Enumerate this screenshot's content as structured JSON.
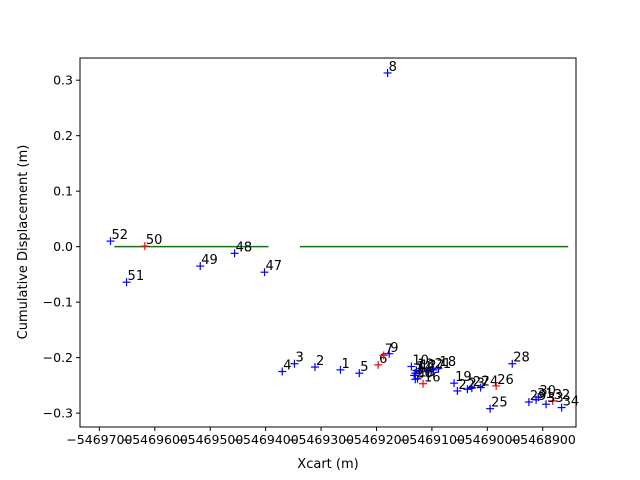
{
  "chart_data": {
    "type": "scatter",
    "title": "",
    "xlabel": "Xcart (m)",
    "ylabel": "Cumulative Displacement (m)",
    "xlim": [
      -5469735,
      -5468840
    ],
    "ylim": [
      -0.325,
      0.34
    ],
    "xticks": [
      -5469700,
      -5469600,
      -5469500,
      -5469400,
      -5469300,
      -5469200,
      -5469100,
      -5469000,
      -5468900
    ],
    "xtick_labels": [
      "−5469700",
      "−5469600",
      "−5469500",
      "−5469400",
      "−5469300",
      "−5469200",
      "−5469100",
      "−5469000",
      "−5468900"
    ],
    "yticks": [
      -0.3,
      -0.2,
      -0.1,
      0.0,
      0.1,
      0.2,
      0.3
    ],
    "ytick_labels": [
      "−0.3",
      "−0.2",
      "−0.1",
      "0.0",
      "0.1",
      "0.2",
      "0.3"
    ],
    "grid": false,
    "colors": {
      "blue": "#0000ff",
      "red": "#ff0000",
      "green": "#008000",
      "axis": "#000000"
    },
    "reference_lines": [
      {
        "x": [
          -5469673,
          -5469395
        ],
        "y": [
          0.0,
          0.0
        ],
        "color": "#008000"
      },
      {
        "x": [
          -5469338,
          -5468854
        ],
        "y": [
          0.0,
          0.0
        ],
        "color": "#008000"
      }
    ],
    "points": [
      {
        "label": "1",
        "x": -5469265,
        "y": -0.222,
        "color": "#0000ff"
      },
      {
        "label": "2",
        "x": -5469311,
        "y": -0.217,
        "color": "#0000ff"
      },
      {
        "label": "3",
        "x": -5469348,
        "y": -0.211,
        "color": "#0000ff"
      },
      {
        "label": "4",
        "x": -5469370,
        "y": -0.225,
        "color": "#0000ff"
      },
      {
        "label": "5",
        "x": -5469231,
        "y": -0.228,
        "color": "#0000ff"
      },
      {
        "label": "6",
        "x": -5469197,
        "y": -0.213,
        "color": "#ff0000"
      },
      {
        "label": "7",
        "x": -5469187,
        "y": -0.196,
        "color": "#ff0000"
      },
      {
        "label": "8",
        "x": -5469180,
        "y": 0.313,
        "color": "#0000ff"
      },
      {
        "label": "9",
        "x": -5469177,
        "y": -0.193,
        "color": "#0000ff"
      },
      {
        "label": "10",
        "x": -5469137,
        "y": -0.216,
        "color": "#0000ff"
      },
      {
        "label": "11",
        "x": -5469130,
        "y": -0.228,
        "color": "#0000ff"
      },
      {
        "label": "12",
        "x": -5469123,
        "y": -0.225,
        "color": "#0000ff"
      },
      {
        "label": "13",
        "x": -5469128,
        "y": -0.223,
        "color": "#0000ff"
      },
      {
        "label": "14",
        "x": -5469132,
        "y": -0.232,
        "color": "#0000ff"
      },
      {
        "label": "15",
        "x": -5469126,
        "y": -0.238,
        "color": "#0000ff"
      },
      {
        "label": "16",
        "x": -5469116,
        "y": -0.247,
        "color": "#ff0000"
      },
      {
        "label": "17",
        "x": -5469108,
        "y": -0.225,
        "color": "#0000ff"
      },
      {
        "label": "18",
        "x": -5469088,
        "y": -0.219,
        "color": "#0000ff"
      },
      {
        "label": "19",
        "x": -5469060,
        "y": -0.246,
        "color": "#0000ff"
      },
      {
        "label": "20",
        "x": -5469130,
        "y": -0.239,
        "color": "#0000ff"
      },
      {
        "label": "21",
        "x": -5469097,
        "y": -0.222,
        "color": "#0000ff"
      },
      {
        "label": "22",
        "x": -5469054,
        "y": -0.26,
        "color": "#0000ff"
      },
      {
        "label": "23",
        "x": -5469036,
        "y": -0.257,
        "color": "#0000ff"
      },
      {
        "label": "24",
        "x": -5469012,
        "y": -0.254,
        "color": "#0000ff"
      },
      {
        "label": "25",
        "x": -5468995,
        "y": -0.292,
        "color": "#0000ff"
      },
      {
        "label": "26",
        "x": -5468984,
        "y": -0.251,
        "color": "#ff0000"
      },
      {
        "label": "27",
        "x": -5469028,
        "y": -0.255,
        "color": "#0000ff"
      },
      {
        "label": "28",
        "x": -5468955,
        "y": -0.211,
        "color": "#0000ff"
      },
      {
        "label": "29",
        "x": -5468925,
        "y": -0.28,
        "color": "#0000ff"
      },
      {
        "label": "30",
        "x": -5468908,
        "y": -0.271,
        "color": "#0000ff"
      },
      {
        "label": "31",
        "x": -5468912,
        "y": -0.276,
        "color": "#0000ff"
      },
      {
        "label": "32",
        "x": -5468882,
        "y": -0.278,
        "color": "#ff0000"
      },
      {
        "label": "33",
        "x": -5468894,
        "y": -0.284,
        "color": "#0000ff"
      },
      {
        "label": "34",
        "x": -5468866,
        "y": -0.29,
        "color": "#0000ff"
      },
      {
        "label": "47",
        "x": -5469402,
        "y": -0.046,
        "color": "#0000ff"
      },
      {
        "label": "48",
        "x": -5469456,
        "y": -0.012,
        "color": "#0000ff"
      },
      {
        "label": "49",
        "x": -5469518,
        "y": -0.035,
        "color": "#0000ff"
      },
      {
        "label": "50",
        "x": -5469618,
        "y": 0.001,
        "color": "#ff0000"
      },
      {
        "label": "51",
        "x": -5469651,
        "y": -0.064,
        "color": "#0000ff"
      },
      {
        "label": "52",
        "x": -5469680,
        "y": 0.01,
        "color": "#0000ff"
      }
    ]
  }
}
